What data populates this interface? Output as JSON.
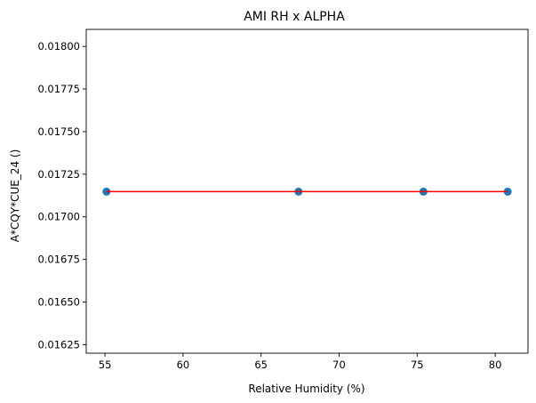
{
  "chart_data": {
    "type": "scatter",
    "title": "AMI RH x ALPHA",
    "xlabel": "Relative Humidity (%)",
    "ylabel": "A*CQY*CUE_24 ()",
    "xlim": [
      53.8,
      82.1
    ],
    "ylim": [
      0.0162,
      0.0181
    ],
    "xticks": [
      55,
      60,
      65,
      70,
      75,
      80
    ],
    "yticks": [
      0.01625,
      0.0165,
      0.01675,
      0.017,
      0.01725,
      0.0175,
      0.01775,
      0.018
    ],
    "x_tick_labels": [
      "55",
      "60",
      "65",
      "70",
      "75",
      "80"
    ],
    "y_tick_labels": [
      "0.01625",
      "0.01650",
      "0.01675",
      "0.01700",
      "0.01725",
      "0.01750",
      "0.01775",
      "0.01800"
    ],
    "grid": false,
    "points": {
      "x": [
        55.1,
        67.4,
        75.4,
        80.8
      ],
      "y": [
        0.017148,
        0.017148,
        0.017148,
        0.017148
      ],
      "color": "#1f77b4"
    },
    "fit_line": {
      "x": [
        55.1,
        80.8
      ],
      "y": [
        0.017148,
        0.017148
      ],
      "color": "#ff0000"
    }
  }
}
